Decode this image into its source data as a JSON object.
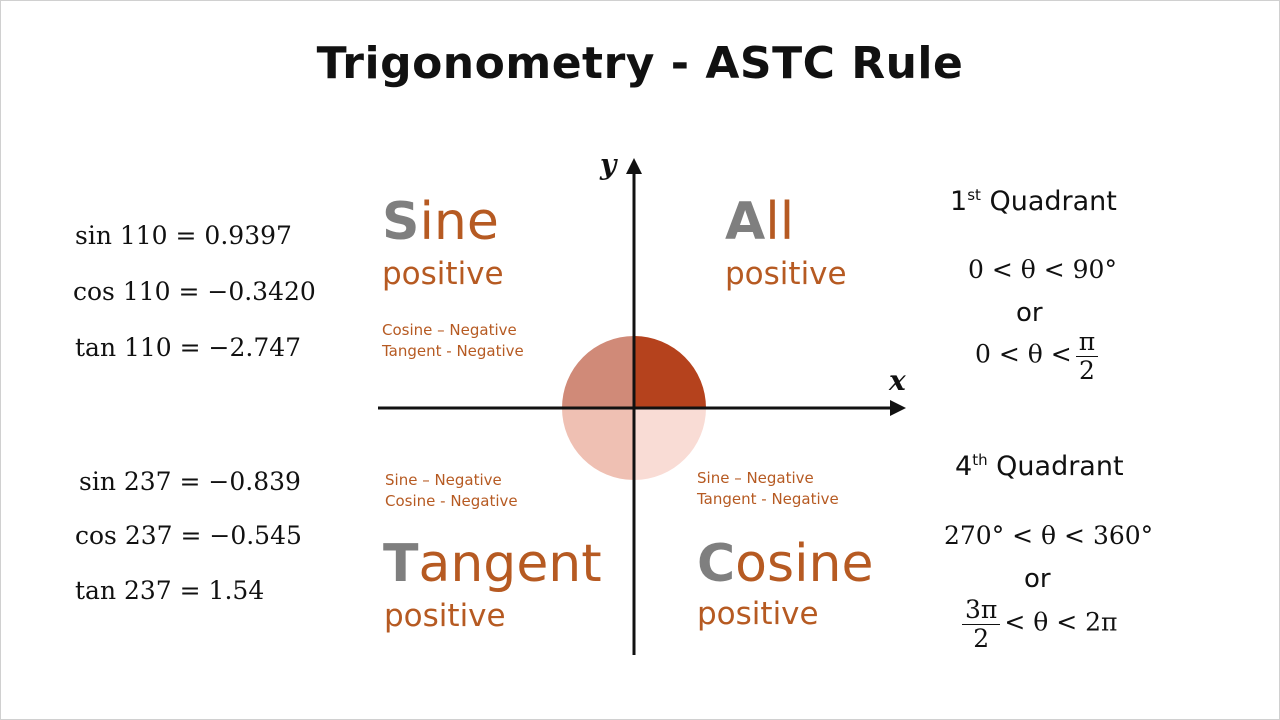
{
  "title": "Trigonometry - ASTC Rule",
  "axes": {
    "x_label": "x",
    "y_label": "y"
  },
  "left_equations": {
    "angle_110": [
      "sin 110 = 0.9397",
      "cos 110 = −0.3420",
      "tan 110 = −2.747"
    ],
    "angle_237": [
      "sin 237 = −0.839",
      "cos 237 = −0.545",
      "tan 237 = 1.54"
    ]
  },
  "quadrants": {
    "q2": {
      "first_letter": "S",
      "rest": "ine",
      "positive": "positive",
      "notes": [
        "Cosine – Negative",
        "Tangent - Negative"
      ]
    },
    "q1": {
      "first_letter": "A",
      "rest": "ll",
      "positive": "positive"
    },
    "q3": {
      "first_letter": "T",
      "rest": "angent",
      "positive": "positive",
      "notes": [
        "Sine – Negative",
        "Cosine - Negative"
      ]
    },
    "q4": {
      "first_letter": "C",
      "rest": "osine",
      "positive": "positive",
      "notes": [
        "Sine – Negative",
        "Tangent - Negative"
      ]
    }
  },
  "colors": {
    "q1": "#b5421d",
    "q2": "#d08a78",
    "q3": "#efc0b3",
    "q4": "#f9dcd5",
    "accent": "#b65a22",
    "letter_gray": "#7f7f7f"
  },
  "right_panel": {
    "first": {
      "head_num": "1",
      "head_sup": "st",
      "head_text": " Quadrant",
      "deg_range": "0 < θ < 90°",
      "or": "or",
      "rad_left": "0 < θ <",
      "rad_num": "π",
      "rad_den": "2"
    },
    "fourth": {
      "head_num": "4",
      "head_sup": "th",
      "head_text": " Quadrant",
      "deg_range": "270° < θ < 360°",
      "or": "or",
      "rad_num": "3π",
      "rad_den": "2",
      "rad_right": "< θ < 2π"
    }
  }
}
